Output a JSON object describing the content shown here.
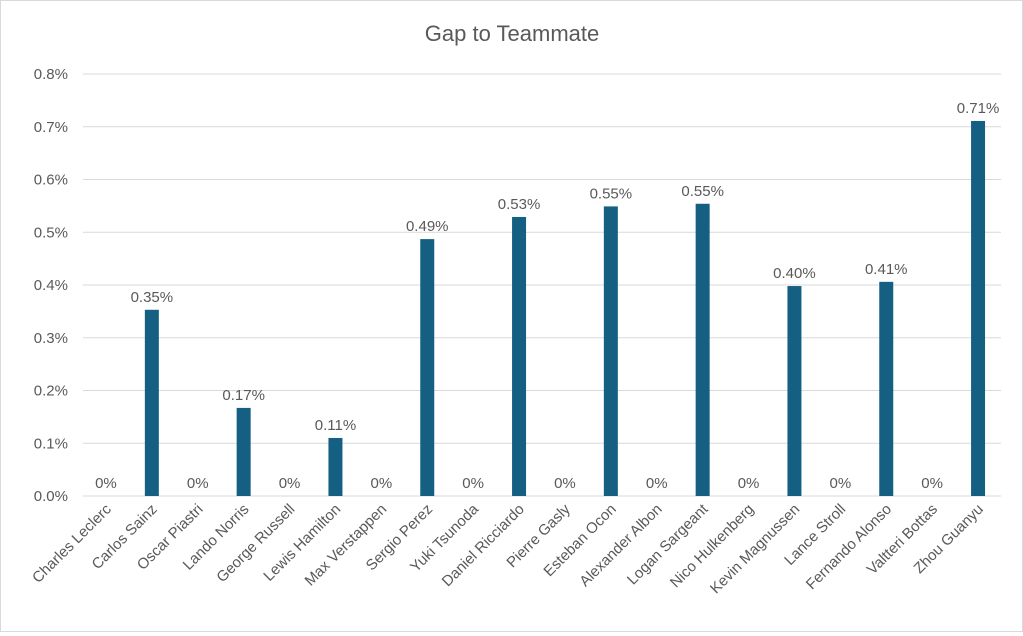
{
  "chart_data": {
    "type": "bar",
    "title": "Gap to Teammate",
    "xlabel": "",
    "ylabel": "",
    "ylim": [
      0,
      0.8
    ],
    "yticks": [
      "0.0%",
      "0.1%",
      "0.2%",
      "0.3%",
      "0.4%",
      "0.5%",
      "0.6%",
      "0.7%",
      "0.8%"
    ],
    "grid": true,
    "legend": "none",
    "categories": [
      "Charles Leclerc",
      "Carlos Sainz",
      "Oscar Piastri",
      "Lando Norris",
      "George Russell",
      "Lewis Hamilton",
      "Max Verstappen",
      "Sergio Perez",
      "Yuki Tsunoda",
      "Daniel Ricciardo",
      "Pierre Gasly",
      "Esteban Ocon",
      "Alexander Albon",
      "Logan Sargeant",
      "Nico Hulkenberg",
      "Kevin Magnussen",
      "Lance Stroll",
      "Fernando Alonso",
      "Valtteri Bottas",
      "Zhou Guanyu"
    ],
    "values": [
      0,
      0.353,
      0,
      0.167,
      0,
      0.11,
      0,
      0.487,
      0,
      0.529,
      0,
      0.549,
      0,
      0.554,
      0,
      0.398,
      0,
      0.406,
      0,
      0.711
    ],
    "data_labels": [
      "0%",
      "0.35%",
      "0%",
      "0.17%",
      "0%",
      "0.11%",
      "0%",
      "0.49%",
      "0%",
      "0.53%",
      "0%",
      "0.55%",
      "0%",
      "0.55%",
      "0%",
      "0.40%",
      "0%",
      "0.41%",
      "0%",
      "0.71%"
    ],
    "bar_color": "#156082",
    "grid_color": "#d9d9d9",
    "text_color": "#595959"
  }
}
